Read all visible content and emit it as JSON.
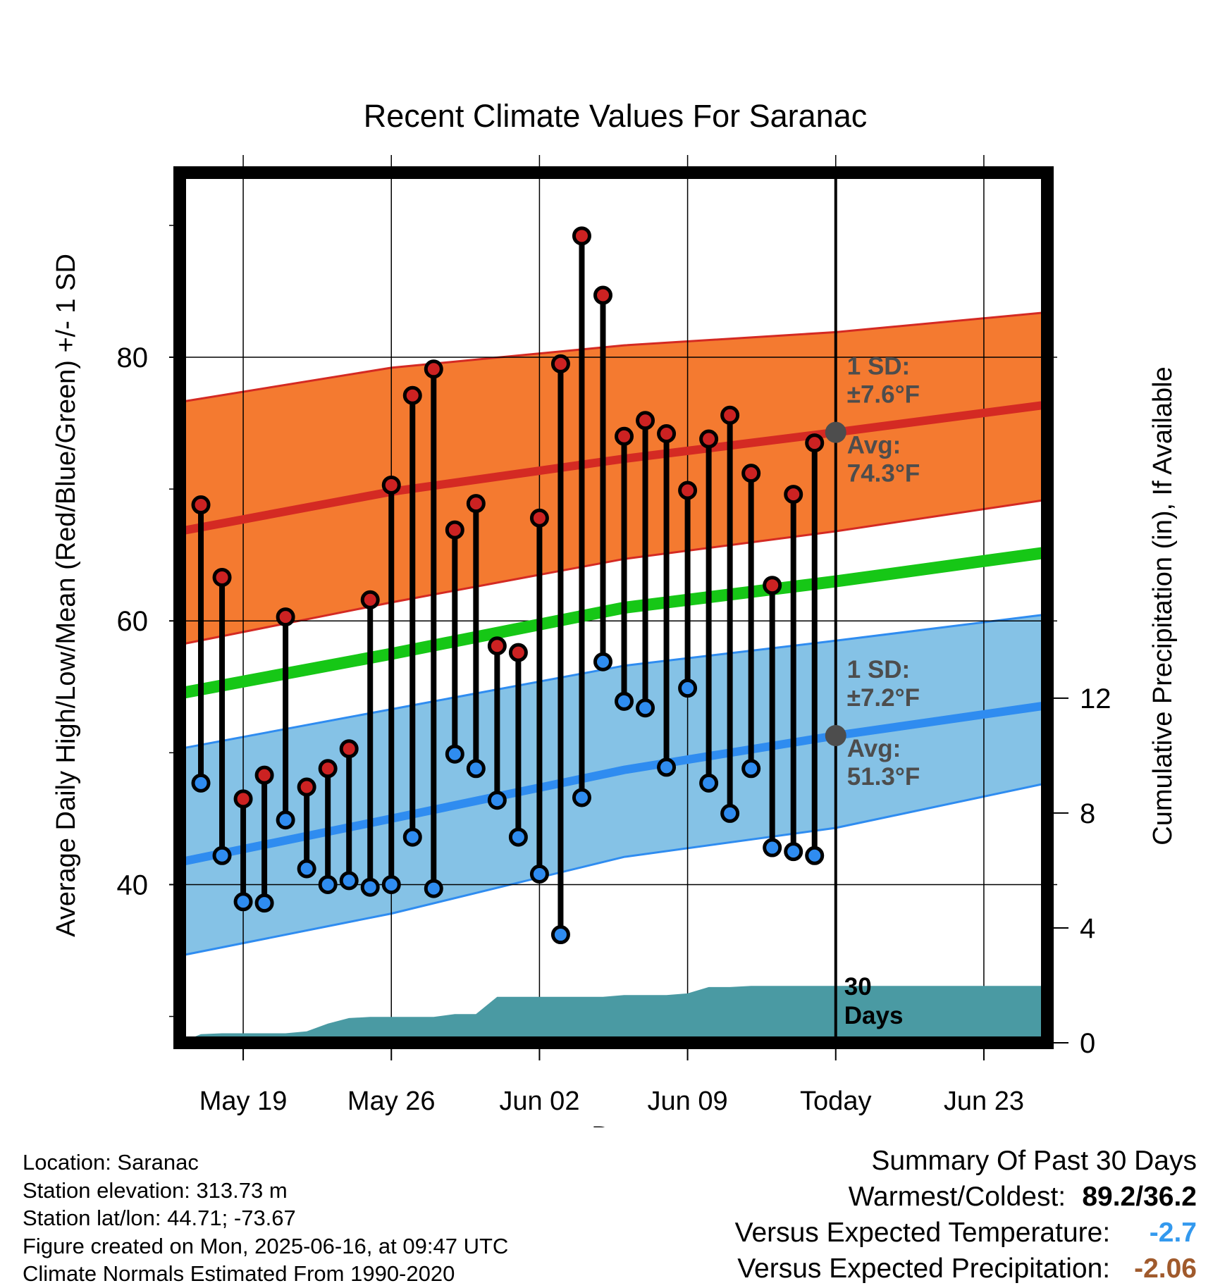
{
  "chart_data": {
    "type": "line",
    "title": "Recent Climate Values For Saranac",
    "xlabel": "Day",
    "ylabel_left": "Average Daily High/Low/Mean (Red/Blue/Green) +/- 1 SD",
    "ylabel_right": "Cumulative Precipitation (in), If Available",
    "x_range": [
      "May 16",
      "Jun 26"
    ],
    "ylim_left": [
      28,
      94
    ],
    "ylim_right": [
      0,
      30.3
    ],
    "x_ticks": [
      {
        "date": "May 19",
        "label": "May 19"
      },
      {
        "date": "May 26",
        "label": "May 26"
      },
      {
        "date": "Jun 02",
        "label": "Jun 02"
      },
      {
        "date": "Jun 09",
        "label": "Jun 09"
      },
      {
        "date": "Jun 16",
        "label": "Today"
      },
      {
        "date": "Jun 23",
        "label": "Jun 23"
      }
    ],
    "y_ticks_left": [
      "40",
      "60",
      "80"
    ],
    "y_ticks_right": [
      "0",
      "4",
      "8",
      "12"
    ],
    "today": "Jun 16",
    "grid": true,
    "normals": {
      "dates": [
        "May 16",
        "May 26",
        "Jun 06",
        "Jun 16",
        "Jun 26"
      ],
      "high_avg": [
        66.8,
        69.8,
        72.3,
        74.3,
        76.4
      ],
      "high_minus_sd": [
        58.2,
        61.4,
        64.7,
        66.8,
        69.2
      ],
      "high_plus_sd": [
        76.6,
        79.2,
        80.9,
        81.9,
        83.4
      ],
      "mean_avg": [
        54.5,
        57.5,
        61.0,
        63.0,
        65.2
      ],
      "low_avg": [
        41.7,
        45.0,
        48.7,
        51.3,
        53.6
      ],
      "low_minus_sd": [
        34.6,
        37.8,
        42.1,
        44.3,
        47.7
      ],
      "low_plus_sd": [
        50.3,
        53.3,
        56.6,
        58.5,
        60.5
      ]
    },
    "high_sd_label": [
      "1 SD:",
      "±7.6°F"
    ],
    "high_avg_label": [
      "Avg:",
      "74.3°F"
    ],
    "low_sd_label": [
      "1 SD:",
      "±7.2°F"
    ],
    "low_avg_label": [
      "Avg:",
      "51.3°F"
    ],
    "daily": {
      "dates": [
        "May 17",
        "May 18",
        "May 19",
        "May 20",
        "May 21",
        "May 22",
        "May 23",
        "May 24",
        "May 25",
        "May 26",
        "May 27",
        "May 28",
        "May 29",
        "May 30",
        "May 31",
        "Jun 01",
        "Jun 02",
        "Jun 03",
        "Jun 04",
        "Jun 05",
        "Jun 06",
        "Jun 07",
        "Jun 08",
        "Jun 09",
        "Jun 10",
        "Jun 11",
        "Jun 12",
        "Jun 13",
        "Jun 14",
        "Jun 15"
      ],
      "high": [
        68.8,
        63.3,
        46.5,
        48.3,
        60.3,
        47.4,
        48.8,
        50.3,
        61.6,
        70.3,
        77.1,
        79.1,
        66.9,
        68.9,
        58.1,
        57.6,
        67.8,
        79.5,
        89.2,
        84.7,
        74.0,
        75.2,
        74.2,
        69.9,
        73.8,
        75.6,
        71.2,
        62.7,
        69.6,
        73.5
      ],
      "low": [
        47.7,
        42.2,
        38.7,
        38.6,
        44.9,
        41.2,
        40.0,
        40.3,
        39.8,
        40.0,
        43.6,
        39.7,
        49.9,
        48.8,
        46.4,
        43.6,
        40.8,
        36.2,
        46.6,
        56.9,
        53.9,
        53.4,
        48.9,
        54.9,
        47.7,
        45.4,
        48.8,
        42.8,
        42.5,
        42.2
      ]
    },
    "precip": {
      "dates": [
        "May 16",
        "May 17",
        "May 18",
        "May 19",
        "May 20",
        "May 21",
        "May 22",
        "May 23",
        "May 24",
        "May 25",
        "May 26",
        "May 27",
        "May 28",
        "May 29",
        "May 30",
        "May 31",
        "Jun 01",
        "Jun 02",
        "Jun 03",
        "Jun 04",
        "Jun 05",
        "Jun 06",
        "Jun 07",
        "Jun 08",
        "Jun 09",
        "Jun 10",
        "Jun 11",
        "Jun 12",
        "Jun 13",
        "Jun 14",
        "Jun 15",
        "Jun 16",
        "Jun 26"
      ],
      "cumulative": [
        0.0,
        0.3,
        0.33,
        0.33,
        0.33,
        0.33,
        0.4,
        0.67,
        0.86,
        0.9,
        0.9,
        0.9,
        0.9,
        1.0,
        1.0,
        1.6,
        1.6,
        1.6,
        1.6,
        1.6,
        1.6,
        1.66,
        1.66,
        1.66,
        1.72,
        1.94,
        1.94,
        1.98,
        1.98,
        1.98,
        1.98,
        1.98,
        1.98
      ]
    },
    "precip_label": [
      "30",
      "Days"
    ]
  },
  "footer": {
    "location": "Location: Saranac",
    "elevation": "Station elevation: 313.73 m",
    "latlon": "Station lat/lon: 44.71; -73.67",
    "created": "Figure created on Mon, 2025-06-16, at 09:47 UTC",
    "normals": "Climate Normals Estimated From 1990-2020"
  },
  "summary": {
    "title": "Summary Of Past 30 Days",
    "warm_cold_label": "Warmest/Coldest:",
    "warm_cold_value": "89.2/36.2",
    "temp_label": "Versus Expected Temperature:",
    "temp_value": "-2.7",
    "precip_label": "Versus Expected Precipitation:",
    "precip_value": "-2.06"
  },
  "colors": {
    "high_band": "#f47a30",
    "high_line": "#d42a23",
    "low_band": "#85c2e6",
    "low_line": "#2f8cf0",
    "mean_line": "#16c716",
    "precip_fill": "#4a9aa3",
    "high_dot": "#cc2222",
    "low_dot": "#2f8cf0",
    "annotation": "#4d4d4d",
    "temp_value": "#3399ee",
    "precip_value": "#a05a2c"
  }
}
